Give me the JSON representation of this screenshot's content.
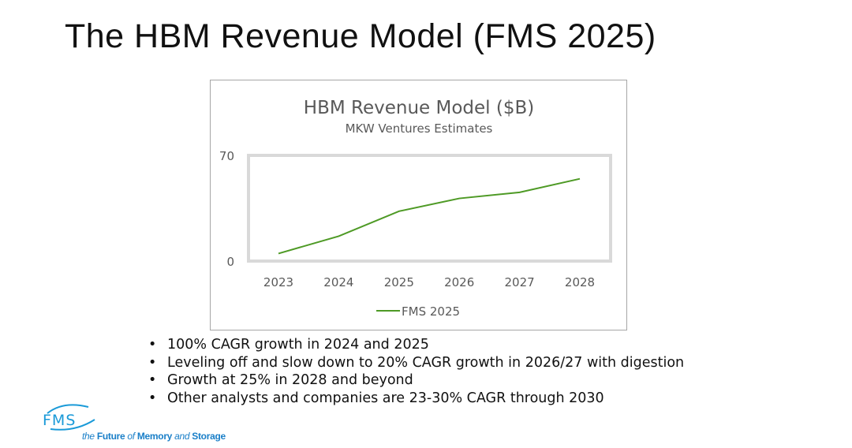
{
  "slide": {
    "title": "The HBM Revenue Model (FMS 2025)",
    "bullets": [
      "100% CAGR growth in 2024 and 2025",
      "Leveling off and slow down to 20% CAGR growth in 2026/27 with digestion",
      "Growth at 25% in 2028 and beyond",
      "Other analysts and companies are 23-30% CAGR through 2030"
    ],
    "logo": {
      "text": "FMS",
      "tagline_pre": "the ",
      "tagline_b1": "Future",
      "tagline_mid1": " of ",
      "tagline_b2": "Memory",
      "tagline_mid2": " and ",
      "tagline_b3": "Storage",
      "color": "#1a7fc8"
    }
  },
  "chart_data": {
    "type": "line",
    "title": "HBM Revenue Model ($B)",
    "subtitle": "MKW Ventures Estimates",
    "categories": [
      "2023",
      "2024",
      "2025",
      "2026",
      "2027",
      "2028"
    ],
    "series": [
      {
        "name": "FMS 2025",
        "values": [
          5,
          16.5,
          33,
          41.5,
          45.5,
          54.5
        ],
        "color": "#4e9a25"
      }
    ],
    "ylim": [
      0,
      70
    ],
    "yticks": [
      "0",
      "70"
    ],
    "grid": false,
    "legend": "bottom"
  }
}
